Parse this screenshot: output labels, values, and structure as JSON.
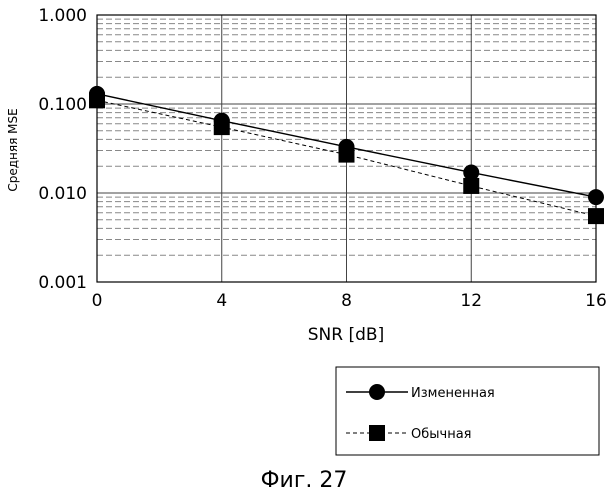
{
  "chart_data": {
    "type": "line",
    "title": "",
    "xlabel": "SNR [dB]",
    "ylabel": "Средняя MSE",
    "yscale": "log",
    "ylim": [
      0.001,
      1.0
    ],
    "xlim": [
      0,
      16
    ],
    "x": [
      0,
      4,
      8,
      12,
      16
    ],
    "x_tick_labels": [
      "0",
      "4",
      "8",
      "12",
      "16"
    ],
    "y_ticks": [
      1.0,
      0.1,
      0.01,
      0.001
    ],
    "y_tick_labels": [
      "1.000",
      "0.100",
      "0.010",
      "0.001"
    ],
    "grid": true,
    "legend_position": "bottom-right",
    "series": [
      {
        "name": "Измененная",
        "marker": "circle",
        "line": "solid",
        "values": [
          0.13,
          0.065,
          0.033,
          0.017,
          0.009
        ]
      },
      {
        "name": "Обычная",
        "marker": "square",
        "line": "dashed",
        "values": [
          0.11,
          0.055,
          0.027,
          0.012,
          0.0055
        ]
      }
    ]
  },
  "caption": "Фиг. 27"
}
